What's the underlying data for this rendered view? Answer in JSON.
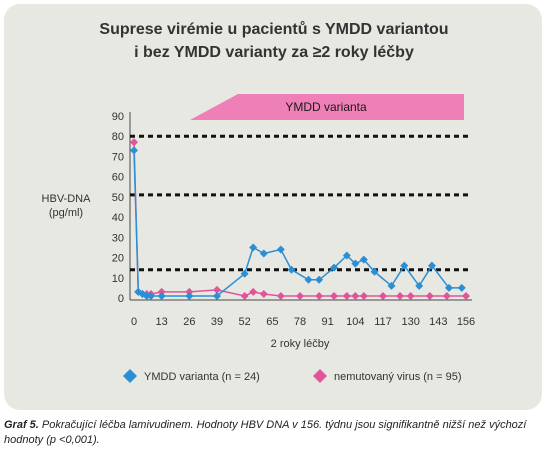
{
  "chart_data": {
    "type": "line",
    "title_line1": "Suprese virémie u pacientů s YMDD variantou",
    "title_line2": "i bez YMDD varianty za ≥2 roky léčby",
    "banner": "YMDD varianta",
    "ylabel_line1": "HBV-DNA",
    "ylabel_line2": "(pg/ml)",
    "xlabel": "2 roky léčby",
    "ylim": [
      0,
      90
    ],
    "yticks": [
      0,
      10,
      20,
      30,
      40,
      50,
      60,
      70,
      80,
      90
    ],
    "xticks": [
      0,
      13,
      26,
      39,
      52,
      65,
      78,
      91,
      104,
      117,
      130,
      143,
      156
    ],
    "reference_lines": [
      80,
      51,
      14
    ],
    "series": [
      {
        "name": "YMDD varianta (n = 24)",
        "color": "#2b8fd6",
        "marker": "diamond",
        "x": [
          0,
          2,
          4,
          6,
          8,
          13,
          26,
          39,
          52,
          56,
          61,
          69,
          74,
          82,
          87,
          94,
          100,
          104,
          108,
          113,
          121,
          127,
          134,
          140,
          148,
          154
        ],
        "y": [
          73,
          3,
          2,
          1,
          1,
          1,
          1,
          1,
          12,
          25,
          22,
          24,
          14,
          9,
          9,
          15,
          21,
          17,
          19,
          13,
          6,
          16,
          6,
          16,
          5,
          5
        ]
      },
      {
        "name": "nemutovaný virus (n = 95)",
        "color": "#e0559a",
        "marker": "diamond",
        "x": [
          0,
          2,
          4,
          6,
          8,
          13,
          26,
          39,
          52,
          56,
          61,
          69,
          78,
          87,
          94,
          100,
          104,
          108,
          117,
          125,
          130,
          139,
          147,
          156
        ],
        "y": [
          77,
          3,
          2,
          2,
          2,
          3,
          3,
          4,
          1,
          3,
          2,
          1,
          1,
          1,
          1,
          1,
          1,
          1,
          1,
          1,
          1,
          1,
          1,
          1
        ]
      }
    ]
  },
  "caption": {
    "label": "Graf 5.",
    "text": "Pokračující léčba lamivudinem. Hodnoty HBV DNA v 156. týdnu jsou signifikantně nižší než výchozí hodnoty (p <0,001)."
  }
}
